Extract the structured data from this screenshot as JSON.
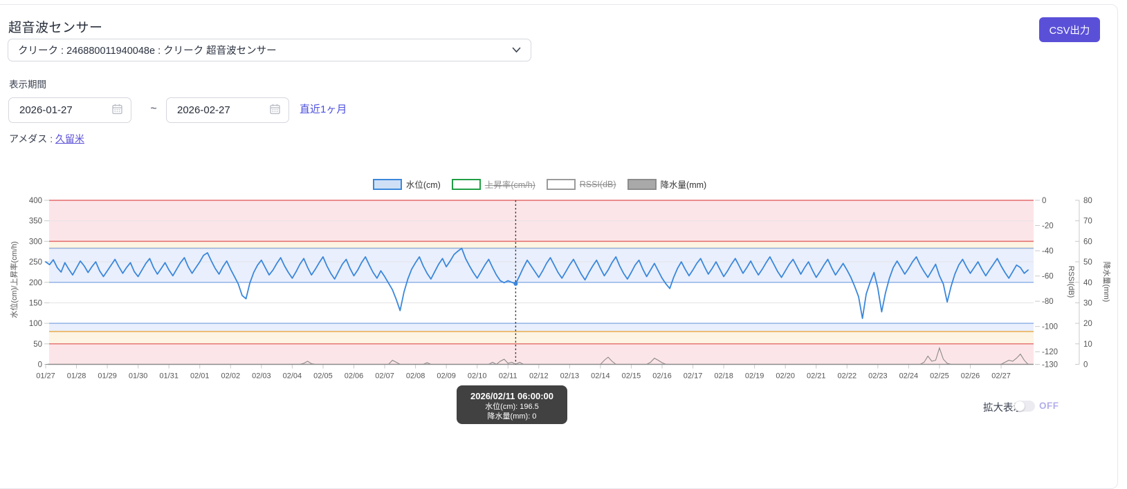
{
  "header": {
    "title": "超音波センサー",
    "csv_button_label": "CSV出力"
  },
  "sensor_select": {
    "value": "クリーク : 246880011940048e : クリーク 超音波センサー"
  },
  "period": {
    "label": "表示期間",
    "start_date": "2026-01-27",
    "end_date": "2026-02-27",
    "separator": "~",
    "quick_link_label": "直近1ヶ月"
  },
  "amedas": {
    "label": "アメダス :",
    "link_label": "久留米"
  },
  "zoom_toggle": {
    "label": "拡大表示",
    "state": "OFF"
  },
  "tooltip": {
    "datetime": "2026/02/11 06:00:00",
    "water_level_line": "水位(cm): 196.5",
    "precip_line": "降水量(mm): 0"
  },
  "colors": {
    "accent": "#5a50d8",
    "link": "#4b4fdf",
    "water_line": "#3a87db",
    "precip_line": "#8a8a8a",
    "band_pink": "#fce5e8",
    "band_cream": "#fdf4e3",
    "band_blue": "#e9effc",
    "edge_red": "#e36a6a",
    "edge_orange": "#e8a94d",
    "edge_blue": "#8fb2e8"
  },
  "chart_data": {
    "type": "line",
    "legend": [
      {
        "label": "水位(cm)",
        "swatch_fill": "#cfe0f6",
        "swatch_border": "#3a87db",
        "active": true
      },
      {
        "label": "上昇率(cm/h)",
        "swatch_fill": "#ffffff",
        "swatch_border": "#1f9e44",
        "active": false
      },
      {
        "label": "RSSI(dB)",
        "swatch_fill": "#ffffff",
        "swatch_border": "#9a9a9a",
        "active": false
      },
      {
        "label": "降水量(mm)",
        "swatch_fill": "#a9a9a9",
        "swatch_border": "#8c8c8c",
        "active": true
      }
    ],
    "x_labels": [
      "01/27",
      "01/28",
      "01/29",
      "01/30",
      "01/31",
      "02/01",
      "02/02",
      "02/03",
      "02/04",
      "02/05",
      "02/06",
      "02/07",
      "02/08",
      "02/09",
      "02/10",
      "02/11",
      "02/12",
      "02/13",
      "02/14",
      "02/15",
      "02/16",
      "02/17",
      "02/18",
      "02/19",
      "02/20",
      "02/21",
      "02/22",
      "02/23",
      "02/24",
      "02/25",
      "02/26",
      "02/27"
    ],
    "y_left": {
      "label": "水位(cm)/上昇率(cm/h)",
      "min": 0,
      "max": 400,
      "ticks": [
        0,
        50,
        100,
        150,
        200,
        250,
        300,
        350,
        400
      ]
    },
    "y_rssi": {
      "label": "RSSI(dB)",
      "min": -130,
      "max": 0,
      "ticks": [
        0,
        -20,
        -40,
        -60,
        -80,
        -100,
        -120,
        -130
      ]
    },
    "y_precip": {
      "label": "降水量(mm)",
      "min": 0,
      "max": 80,
      "ticks": [
        80,
        70,
        60,
        50,
        40,
        30,
        20,
        10,
        0
      ]
    },
    "bands": [
      {
        "from": 300,
        "to": 400,
        "fill": "#fce5e8",
        "edge_color": "#e36a6a",
        "edge_at": [
          400,
          300
        ]
      },
      {
        "from": 283,
        "to": 300,
        "fill": "#fdf4e3",
        "edge_color": "#e8a94d",
        "edge_at": [
          283
        ]
      },
      {
        "from": 200,
        "to": 283,
        "fill": "#e9effc",
        "edge_color": "#8fb2e8",
        "edge_at": [
          283,
          200
        ]
      },
      {
        "from": 80,
        "to": 100,
        "fill": "#e9effc",
        "edge_color": "#8fb2e8",
        "edge_at": [
          100
        ]
      },
      {
        "from": 50,
        "to": 80,
        "fill": "#fdf4e3",
        "edge_color": "#e8a94d",
        "edge_at": [
          80
        ]
      },
      {
        "from": 0,
        "to": 50,
        "fill": "#fce5e8",
        "edge_color": "#e36a6a",
        "edge_at": [
          50
        ]
      }
    ],
    "series": [
      {
        "name": "水位(cm)",
        "color": "#3a87db",
        "unit": "cm",
        "start": "2026-01-27 00:00",
        "interval_hours": 3,
        "values": [
          250,
          243,
          255,
          236,
          225,
          248,
          232,
          218,
          235,
          252,
          240,
          224,
          238,
          250,
          228,
          214,
          228,
          242,
          256,
          238,
          222,
          236,
          248,
          226,
          214,
          230,
          246,
          258,
          236,
          220,
          234,
          248,
          230,
          216,
          232,
          248,
          260,
          238,
          222,
          236,
          250,
          266,
          272,
          252,
          234,
          220,
          238,
          252,
          232,
          214,
          196,
          168,
          160,
          198,
          224,
          242,
          254,
          236,
          218,
          230,
          246,
          260,
          240,
          224,
          210,
          226,
          244,
          258,
          236,
          218,
          232,
          248,
          262,
          240,
          222,
          208,
          226,
          244,
          256,
          234,
          216,
          230,
          248,
          262,
          242,
          224,
          210,
          228,
          214,
          198,
          182,
          158,
          131,
          176,
          208,
          232,
          248,
          262,
          240,
          222,
          208,
          226,
          244,
          258,
          238,
          252,
          268,
          276,
          283,
          258,
          240,
          224,
          210,
          226,
          242,
          256,
          236,
          218,
          204,
          199,
          204,
          200,
          196.5,
          216,
          236,
          254,
          240,
          226,
          212,
          228,
          246,
          260,
          242,
          224,
          210,
          226,
          242,
          256,
          238,
          220,
          206,
          224,
          240,
          254,
          234,
          216,
          230,
          248,
          262,
          240,
          222,
          208,
          224,
          242,
          254,
          232,
          214,
          230,
          246,
          228,
          210,
          196,
          185,
          212,
          234,
          250,
          232,
          216,
          230,
          246,
          258,
          238,
          220,
          234,
          250,
          232,
          214,
          228,
          244,
          258,
          240,
          222,
          236,
          252,
          234,
          218,
          232,
          248,
          262,
          244,
          226,
          212,
          228,
          244,
          256,
          238,
          220,
          236,
          250,
          230,
          212,
          226,
          242,
          256,
          236,
          218,
          232,
          246,
          230,
          212,
          190,
          165,
          112,
          172,
          200,
          224,
          186,
          128,
          175,
          210,
          236,
          252,
          236,
          220,
          234,
          250,
          262,
          242,
          226,
          212,
          228,
          244,
          216,
          196,
          152,
          190,
          220,
          242,
          256,
          238,
          222,
          236,
          250,
          232,
          216,
          230,
          244,
          258,
          240,
          224,
          210,
          226,
          242,
          236,
          222,
          230
        ]
      },
      {
        "name": "降水量(mm)",
        "color": "#8a8a8a",
        "unit": "mm",
        "start": "2026-01-27 00:00",
        "interval_hours": 3,
        "baseline": 0,
        "points": [
          [
            67,
            0.5
          ],
          [
            68,
            1.5
          ],
          [
            69,
            0.3
          ],
          [
            90,
            2
          ],
          [
            91,
            1
          ],
          [
            99,
            0.8
          ],
          [
            116,
            1
          ],
          [
            118,
            1.5
          ],
          [
            119,
            2.5
          ],
          [
            120,
            0.5
          ],
          [
            121,
            1
          ],
          [
            123,
            1
          ],
          [
            145,
            2
          ],
          [
            146,
            3.5
          ],
          [
            147,
            1.5
          ],
          [
            157,
            1
          ],
          [
            158,
            3
          ],
          [
            159,
            2
          ],
          [
            160,
            0.8
          ],
          [
            228,
            1
          ],
          [
            229,
            4
          ],
          [
            230,
            1.5
          ],
          [
            231,
            2
          ],
          [
            232,
            8
          ],
          [
            233,
            2.5
          ],
          [
            234,
            0.5
          ],
          [
            249,
            1
          ],
          [
            250,
            2
          ],
          [
            251,
            1.5
          ],
          [
            252,
            3
          ],
          [
            253,
            5
          ],
          [
            254,
            2
          ]
        ]
      }
    ],
    "hidden_series": [
      "上昇率(cm/h)",
      "RSSI(dB)"
    ],
    "crosshair": {
      "index": 122,
      "datetime": "2026/02/11 06:00:00",
      "water_level": 196.5,
      "precipitation": 0
    }
  }
}
